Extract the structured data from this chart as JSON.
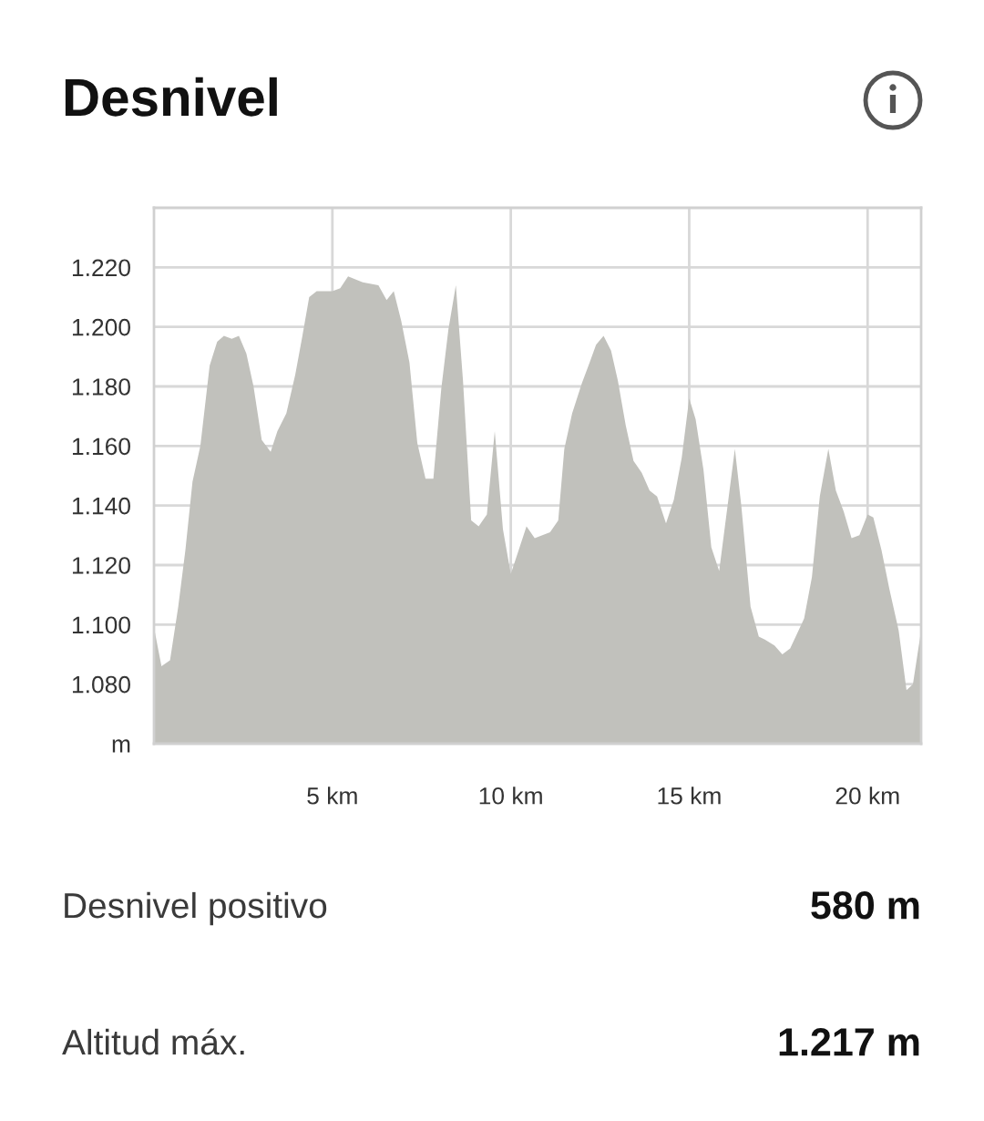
{
  "chart_data": {
    "type": "area",
    "title": "Desnivel",
    "x": [
      0,
      0.21,
      0.45,
      0.68,
      0.88,
      1.08,
      1.3,
      1.56,
      1.77,
      1.96,
      2.18,
      2.38,
      2.59,
      2.79,
      3.02,
      3.27,
      3.46,
      3.71,
      3.96,
      4.16,
      4.35,
      4.56,
      4.8,
      5.0,
      5.22,
      5.44,
      5.85,
      6.29,
      6.52,
      6.72,
      6.93,
      7.16,
      7.38,
      7.61,
      7.83,
      8.05,
      8.25,
      8.46,
      8.66,
      8.89,
      9.1,
      9.33,
      9.55,
      9.78,
      10.0,
      10.22,
      10.44,
      10.67,
      11.1,
      11.33,
      11.5,
      11.72,
      11.99,
      12.21,
      12.39,
      12.6,
      12.81,
      13.0,
      13.22,
      13.44,
      13.67,
      13.89,
      14.1,
      14.35,
      14.57,
      14.79,
      15.0,
      15.18,
      15.4,
      15.62,
      15.84,
      16.28,
      16.46,
      16.72,
      16.95,
      17.12,
      17.39,
      17.61,
      17.83,
      18.22,
      18.44,
      18.66,
      18.9,
      19.11,
      19.33,
      19.55,
      19.77,
      20.0,
      20.16,
      20.39,
      20.61,
      20.87,
      21.09,
      21.27,
      21.5
    ],
    "values": [
      1099,
      1086,
      1088,
      1106,
      1125,
      1148,
      1160,
      1187,
      1195,
      1197,
      1196,
      1197,
      1191,
      1180,
      1162,
      1158,
      1165,
      1171,
      1184,
      1197,
      1210,
      1212,
      1212,
      1212,
      1213,
      1217,
      1215,
      1214,
      1209,
      1212,
      1202,
      1188,
      1161,
      1149,
      1149,
      1179,
      1199,
      1214,
      1182,
      1135,
      1133,
      1137,
      1165,
      1132,
      1117,
      1125,
      1133,
      1129,
      1131,
      1135,
      1159,
      1171,
      1181,
      1188,
      1194,
      1197,
      1192,
      1182,
      1167,
      1155,
      1151,
      1145,
      1143,
      1134,
      1142,
      1156,
      1176,
      1169,
      1152,
      1126,
      1118,
      1159,
      1140,
      1106,
      1096,
      1095,
      1093,
      1090,
      1092,
      1102,
      1116,
      1143,
      1159,
      1145,
      1138,
      1129,
      1130,
      1137,
      1136,
      1125,
      1112,
      1098,
      1078,
      1080,
      1098
    ],
    "color": "#c1c1bc",
    "xlim": [
      0,
      21.5
    ],
    "ylim": [
      1060,
      1240
    ],
    "xticks": [
      {
        "value": 5,
        "label": "5 km"
      },
      {
        "value": 10,
        "label": "10 km"
      },
      {
        "value": 15,
        "label": "15 km"
      },
      {
        "value": 20,
        "label": "20 km"
      }
    ],
    "yticks": [
      {
        "value": 1060,
        "label": "m"
      },
      {
        "value": 1080,
        "label": "1.080"
      },
      {
        "value": 1100,
        "label": "1.100"
      },
      {
        "value": 1120,
        "label": "1.120"
      },
      {
        "value": 1140,
        "label": "1.140"
      },
      {
        "value": 1160,
        "label": "1.160"
      },
      {
        "value": 1180,
        "label": "1.180"
      },
      {
        "value": 1200,
        "label": "1.200"
      },
      {
        "value": 1220,
        "label": "1.220"
      }
    ],
    "grid": true,
    "annotations": [
      "Desnivel positivo",
      "580 m",
      "Altitud máx.",
      "1.217 m"
    ]
  }
}
